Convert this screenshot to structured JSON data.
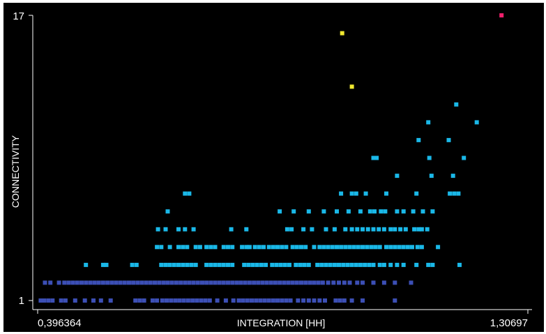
{
  "chart_data": {
    "type": "scatter",
    "xlabel": "INTEGRATION [HH]",
    "ylabel": "CONNECTIVITY",
    "xlim": [
      0.396364,
      1.30697
    ],
    "ylim": [
      1,
      17
    ],
    "x_tick_labels": [
      "0,396364",
      "1,30697"
    ],
    "y_tick_labels": [
      "1",
      "17"
    ],
    "legend": "none",
    "grid": false,
    "color_scale": {
      "low": "#3c4fb5",
      "mid": "#1ab8e8",
      "high": "#f0e830",
      "top": "#f0206c",
      "note_thresholds": [
        3,
        12,
        16
      ]
    },
    "rows": [
      {
        "y": 1,
        "xs": [
          0.402,
          0.408,
          0.416,
          0.424,
          0.44,
          0.448,
          0.466,
          0.484,
          0.5,
          0.514,
          0.532,
          0.578,
          0.586,
          0.594,
          0.61,
          0.618,
          0.628,
          0.636,
          0.644,
          0.652,
          0.66,
          0.668,
          0.676,
          0.684,
          0.692,
          0.7,
          0.708,
          0.716,
          0.73,
          0.746,
          0.76,
          0.77,
          0.778,
          0.786,
          0.794,
          0.802,
          0.81,
          0.818,
          0.826,
          0.834,
          0.842,
          0.85,
          0.858,
          0.866,
          0.88,
          0.89,
          0.9,
          0.91,
          0.92,
          0.93,
          0.95,
          0.958,
          0.966,
          0.98,
          1.0,
          1.06
        ]
      },
      {
        "y": 2,
        "xs": [
          0.41,
          0.42,
          0.436,
          0.446,
          0.454,
          0.462,
          0.47,
          0.478,
          0.486,
          0.494,
          0.502,
          0.51,
          0.518,
          0.526,
          0.534,
          0.542,
          0.55,
          0.558,
          0.566,
          0.574,
          0.582,
          0.59,
          0.598,
          0.606,
          0.614,
          0.622,
          0.63,
          0.638,
          0.646,
          0.654,
          0.662,
          0.67,
          0.678,
          0.686,
          0.694,
          0.702,
          0.71,
          0.718,
          0.726,
          0.734,
          0.742,
          0.75,
          0.758,
          0.766,
          0.774,
          0.782,
          0.79,
          0.798,
          0.806,
          0.814,
          0.822,
          0.83,
          0.838,
          0.846,
          0.854,
          0.862,
          0.87,
          0.878,
          0.886,
          0.894,
          0.902,
          0.91,
          0.918,
          0.926,
          0.936,
          0.946,
          0.956,
          0.966,
          0.976,
          0.99,
          1.0,
          1.02,
          1.04,
          1.06,
          1.09
        ]
      },
      {
        "y": 3,
        "xs": [
          0.486,
          0.518,
          0.524,
          0.572,
          0.58,
          0.626,
          0.634,
          0.642,
          0.65,
          0.658,
          0.666,
          0.674,
          0.682,
          0.69,
          0.71,
          0.718,
          0.726,
          0.734,
          0.742,
          0.75,
          0.758,
          0.78,
          0.788,
          0.796,
          0.804,
          0.812,
          0.82,
          0.832,
          0.84,
          0.848,
          0.856,
          0.864,
          0.876,
          0.884,
          0.892,
          0.9,
          0.916,
          0.924,
          0.932,
          0.94,
          0.948,
          0.956,
          0.964,
          0.972,
          0.98,
          0.988,
          0.996,
          1.004,
          1.012,
          1.02,
          1.032,
          1.04,
          1.052,
          1.064,
          1.076,
          1.1,
          1.122,
          1.13,
          1.18
        ]
      },
      {
        "y": 4,
        "xs": [
          0.618,
          0.626,
          0.642,
          0.658,
          0.666,
          0.674,
          0.69,
          0.698,
          0.71,
          0.718,
          0.726,
          0.742,
          0.75,
          0.758,
          0.776,
          0.784,
          0.79,
          0.8,
          0.808,
          0.816,
          0.826,
          0.834,
          0.842,
          0.85,
          0.858,
          0.87,
          0.878,
          0.886,
          0.894,
          0.91,
          0.92,
          0.928,
          0.936,
          0.944,
          0.952,
          0.96,
          0.968,
          0.976,
          0.984,
          0.992,
          1.0,
          1.008,
          1.016,
          1.024,
          1.032,
          1.044,
          1.052,
          1.06,
          1.068,
          1.076,
          1.084,
          1.092,
          1.102,
          1.11,
          1.14
        ]
      },
      {
        "y": 5,
        "xs": [
          0.62,
          0.634,
          0.658,
          0.67,
          0.686,
          0.756,
          0.784,
          0.86,
          0.868,
          0.89,
          0.906,
          0.932,
          0.948,
          0.968,
          0.98,
          0.99,
          1.0,
          1.01,
          1.02,
          1.03,
          1.04,
          1.052,
          1.06,
          1.07,
          1.08,
          1.096,
          1.104,
          1.11,
          1.12
        ]
      },
      {
        "y": 6,
        "xs": [
          0.638,
          0.846,
          0.872,
          0.9,
          0.928,
          0.952,
          0.974,
          0.996,
          1.014,
          1.022,
          1.034,
          1.042,
          1.064,
          1.076,
          1.094,
          1.112,
          1.13
        ]
      },
      {
        "y": 7,
        "xs": [
          0.67,
          0.678,
          0.96,
          0.98,
          0.988,
          1.006,
          1.044,
          1.1,
          1.162,
          1.17,
          1.178
        ]
      },
      {
        "y": 8,
        "xs": [
          1.064,
          1.128,
          1.168
        ]
      },
      {
        "y": 9,
        "xs": [
          1.02,
          1.026,
          1.124,
          1.188
        ]
      },
      {
        "y": 10,
        "xs": [
          1.104,
          1.16
        ]
      },
      {
        "y": 11,
        "xs": [
          1.122,
          1.212
        ]
      },
      {
        "y": 12,
        "xs": [
          1.174
        ]
      },
      {
        "y": 13,
        "xs": [
          0.98
        ]
      },
      {
        "y": 16,
        "xs": [
          0.962
        ]
      },
      {
        "y": 17,
        "xs": [
          1.258
        ]
      }
    ]
  }
}
